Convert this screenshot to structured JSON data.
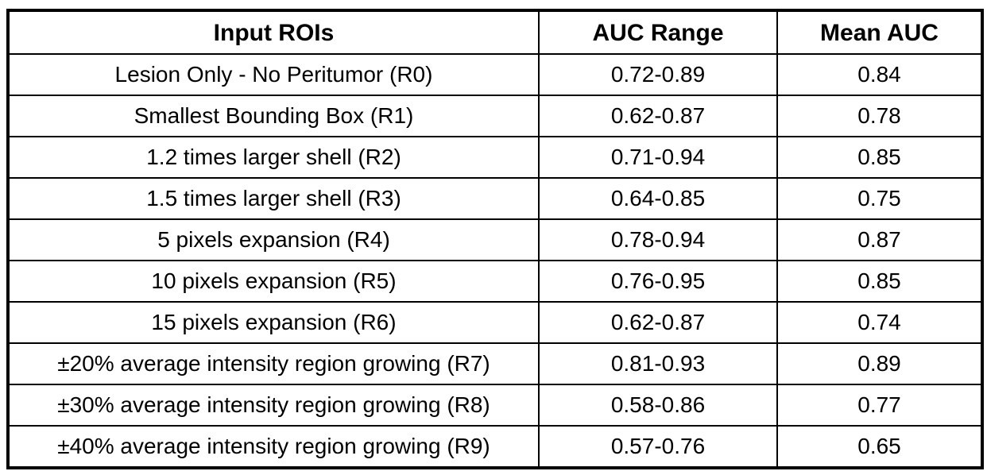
{
  "table": {
    "columns": [
      {
        "label": "Input ROIs"
      },
      {
        "label": "AUC Range"
      },
      {
        "label": "Mean AUC"
      }
    ],
    "rows": [
      {
        "roi": "Lesion Only - No Peritumor (R0)",
        "auc_range": "0.72-0.89",
        "mean_auc": "0.84"
      },
      {
        "roi": "Smallest Bounding Box (R1)",
        "auc_range": "0.62-0.87",
        "mean_auc": "0.78"
      },
      {
        "roi": "1.2 times larger shell (R2)",
        "auc_range": "0.71-0.94",
        "mean_auc": "0.85"
      },
      {
        "roi": "1.5 times larger shell (R3)",
        "auc_range": "0.64-0.85",
        "mean_auc": "0.75"
      },
      {
        "roi": "5 pixels expansion (R4)",
        "auc_range": "0.78-0.94",
        "mean_auc": "0.87"
      },
      {
        "roi": "10 pixels expansion (R5)",
        "auc_range": "0.76-0.95",
        "mean_auc": "0.85"
      },
      {
        "roi": "15 pixels expansion (R6)",
        "auc_range": "0.62-0.87",
        "mean_auc": "0.74"
      },
      {
        "roi": "±20% average intensity region growing (R7)",
        "auc_range": "0.81-0.93",
        "mean_auc": "0.89"
      },
      {
        "roi": "±30% average intensity region growing (R8)",
        "auc_range": "0.58-0.86",
        "mean_auc": "0.77"
      },
      {
        "roi": "±40% average intensity region growing (R9)",
        "auc_range": "0.57-0.76",
        "mean_auc": "0.65"
      }
    ]
  },
  "chart_data": {
    "type": "table",
    "title": "",
    "columns": [
      "Input ROIs",
      "AUC Range",
      "Mean AUC"
    ],
    "rows": [
      [
        "Lesion Only - No Peritumor (R0)",
        "0.72-0.89",
        0.84
      ],
      [
        "Smallest Bounding Box (R1)",
        "0.62-0.87",
        0.78
      ],
      [
        "1.2 times larger shell (R2)",
        "0.71-0.94",
        0.85
      ],
      [
        "1.5 times larger shell (R3)",
        "0.64-0.85",
        0.75
      ],
      [
        "5 pixels expansion (R4)",
        "0.78-0.94",
        0.87
      ],
      [
        "10 pixels expansion (R5)",
        "0.76-0.95",
        0.85
      ],
      [
        "15 pixels expansion (R6)",
        "0.62-0.87",
        0.74
      ],
      [
        "±20% average intensity region growing (R7)",
        "0.81-0.93",
        0.89
      ],
      [
        "±30% average intensity region growing (R8)",
        "0.58-0.86",
        0.77
      ],
      [
        "±40% average intensity region growing (R9)",
        "0.57-0.76",
        0.65
      ]
    ]
  },
  "colors": {
    "border": "#000000",
    "text": "#000000",
    "background": "#ffffff"
  }
}
